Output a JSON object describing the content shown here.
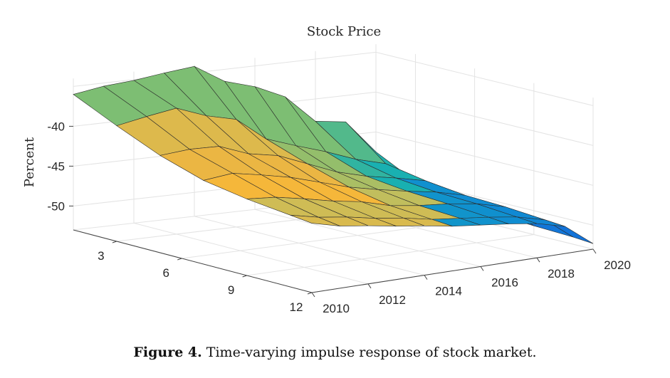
{
  "chart_data": {
    "type": "surface",
    "title": "Stock Price",
    "zlabel": "Percent",
    "xlabel": "",
    "ylabel": "",
    "x_ticks": [
      "2010",
      "2012",
      "2014",
      "2016",
      "2018",
      "2020"
    ],
    "x_range": [
      2010,
      2020
    ],
    "y_ticks": [
      "3",
      "6",
      "9",
      "12"
    ],
    "y_range": [
      1,
      12
    ],
    "z_ticks": [
      "-40",
      "-45",
      "-50"
    ],
    "z_range": [
      -53,
      -34
    ],
    "grid": true,
    "colormap": "parula",
    "x_years": [
      2010,
      2011,
      2012,
      2013,
      2014,
      2015,
      2016,
      2017,
      2018,
      2019,
      2020
    ],
    "horizons": [
      1,
      3,
      5,
      7,
      9,
      11,
      12
    ],
    "z_values": [
      [
        -36,
        -35.4,
        -35.1,
        -34.6,
        -34.2,
        -36.5,
        -37.6,
        -39.3,
        -42.8,
        -43.3,
        -47.5
      ],
      [
        -38.5,
        -37.8,
        -37.2,
        -38.6,
        -39.5,
        -42.4,
        -43.7,
        -44.9,
        -46.3,
        -47.3,
        -50.0
      ],
      [
        -40.8,
        -40.5,
        -40.6,
        -42.0,
        -42.7,
        -44.2,
        -45.7,
        -46.7,
        -47.4,
        -48.2,
        -51.0
      ],
      [
        -42.5,
        -42.1,
        -42.8,
        -43.6,
        -44.7,
        -45.8,
        -46.6,
        -47.3,
        -47.9,
        -48.8,
        -51.6
      ],
      [
        -43.4,
        -43.7,
        -44.4,
        -45.2,
        -45.8,
        -46.8,
        -47.3,
        -47.6,
        -48.1,
        -49.0,
        -51.9
      ],
      [
        -44.0,
        -44.8,
        -45.3,
        -46.0,
        -46.5,
        -47.2,
        -47.6,
        -48.0,
        -48.5,
        -49.4,
        -52.1
      ],
      [
        -44.3,
        -45.2,
        -45.7,
        -46.3,
        -46.8,
        -47.4,
        -47.8,
        -48.2,
        -48.7,
        -49.6,
        -52.3
      ]
    ]
  },
  "caption": {
    "label": "Figure 4.",
    "text": " Time-varying impulse response of stock market."
  }
}
